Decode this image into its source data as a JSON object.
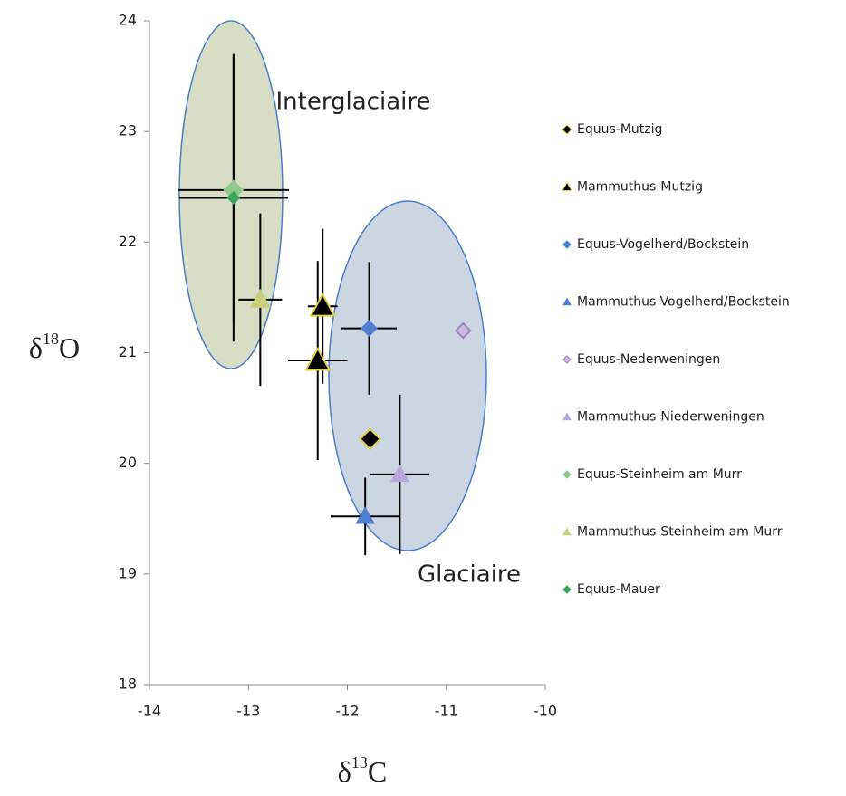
{
  "chart_data": {
    "type": "scatter",
    "x_label": [
      "δ",
      "13",
      "C"
    ],
    "y_label": [
      "δ",
      "18",
      "O"
    ],
    "annotations": [
      "Interglaciaire",
      "Glaciaire"
    ],
    "xlim": [
      -14,
      -10
    ],
    "xticks": [
      -14,
      -13,
      -12,
      -11,
      -10
    ],
    "ylim": [
      18,
      24
    ],
    "yticks": [
      18,
      19,
      20,
      21,
      22,
      23,
      24
    ],
    "series": [
      {
        "name": "Equus-Mutzig",
        "marker": "diamond",
        "color": "#000000",
        "edge": "#e0d040",
        "size": 11,
        "x": [
          -11.77
        ],
        "values": [
          20.22
        ]
      },
      {
        "name": "Mammuthus-Mutzig",
        "marker": "triangle",
        "color": "#000000",
        "edge": "#e0d040",
        "size": 13,
        "x": [
          -12.25,
          -12.3
        ],
        "values": [
          21.42,
          20.93
        ],
        "xerr": [
          0.15,
          0.3
        ],
        "yerr": [
          0.7,
          0.9
        ]
      },
      {
        "name": "Equus-Vogelherd/Bockstein",
        "marker": "diamond",
        "color": "#4f7fcf",
        "edge": "#4f7fcf",
        "size": 8,
        "x": [
          -11.78
        ],
        "values": [
          21.22
        ],
        "xerr": [
          0.28
        ],
        "yerr": [
          0.6
        ]
      },
      {
        "name": "Mammuthus-Vogelherd/Bockstein",
        "marker": "triangle",
        "color": "#4f7fcf",
        "edge": "#4f7fcf",
        "size": 9,
        "x": [
          -11.82
        ],
        "values": [
          19.52
        ],
        "xerr": [
          0.35
        ],
        "yerr": [
          0.35
        ]
      },
      {
        "name": "Equus-Nederweningen",
        "marker": "diamond",
        "color": "#cdb9e0",
        "edge": "#9b86c0",
        "size": 8,
        "x": [
          -10.83
        ],
        "values": [
          21.2
        ]
      },
      {
        "name": "Mammuthus-Niederweningen",
        "marker": "triangle",
        "color": "#b8a7d8",
        "edge": "#b8a7d8",
        "size": 9,
        "x": [
          -11.47
        ],
        "values": [
          19.9
        ],
        "xerr": [
          0.3
        ],
        "yerr": [
          0.72
        ]
      },
      {
        "name": "Equus-Steinheim am Murr",
        "marker": "diamond",
        "color": "#8fc98f",
        "edge": "#8fc98f",
        "size": 10,
        "x": [
          -13.15
        ],
        "values": [
          22.47
        ],
        "xerr": [
          0.56
        ],
        "yerr": [
          1.2
        ]
      },
      {
        "name": "Mammuthus-Steinheim am Murr",
        "marker": "triangle",
        "color": "#c8cf7a",
        "edge": "#c8cf7a",
        "size": 10,
        "x": [
          -12.88
        ],
        "values": [
          21.48
        ],
        "xerr": [
          0.22
        ],
        "yerr": [
          0.78
        ]
      },
      {
        "name": "Equus-Mauer",
        "marker": "diamond",
        "color": "#3aa35a",
        "edge": "#3aa35a",
        "size": 6,
        "x": [
          -13.15
        ],
        "values": [
          22.4
        ],
        "xerr": [
          0.55
        ],
        "yerr": [
          1.3
        ]
      }
    ]
  }
}
